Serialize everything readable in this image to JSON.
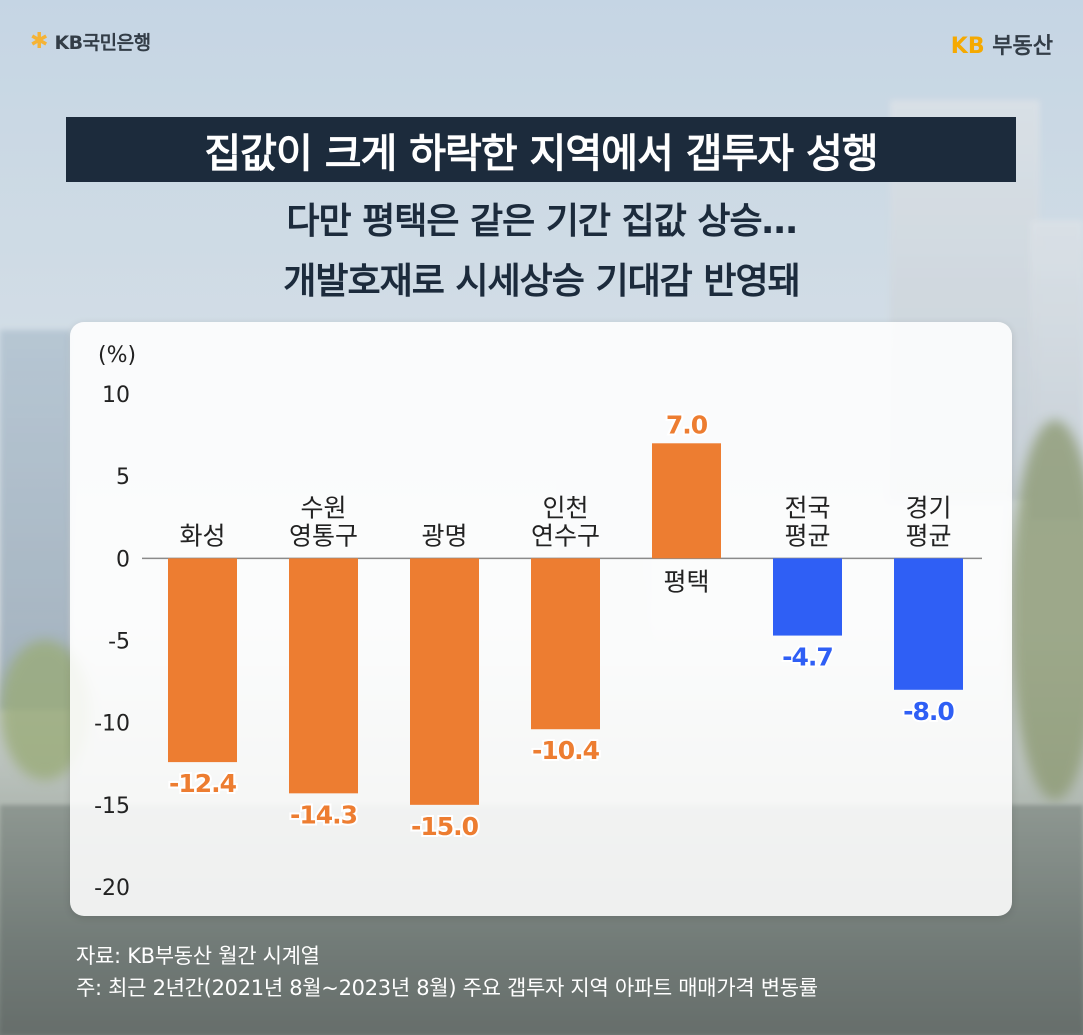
{
  "header": {
    "logo_left": "KB국민은행",
    "logo_right_kb": "KB",
    "logo_right_name": "부동산"
  },
  "title": "집값이 크게 하락한 지역에서 갭투자 성행",
  "subtitle_lines": [
    "다만 평택은 같은 기간 집값 상승…",
    "개발호재로 시세상승 기대감 반영돼"
  ],
  "colors": {
    "orange": "#ed7d31",
    "blue": "#2f5ff5",
    "title_bg": "#1c2b3c"
  },
  "chart_data": {
    "type": "bar",
    "ylabel": "(%)",
    "ylim": [
      -20,
      10
    ],
    "yticks": [
      "10",
      "5",
      "0",
      "-5",
      "-10",
      "-15",
      "-20"
    ],
    "grid": false,
    "categories": [
      [
        "화성"
      ],
      [
        "수원",
        "영통구"
      ],
      [
        "광명"
      ],
      [
        "인천",
        "연수구"
      ],
      [
        "평택"
      ],
      [
        "전국",
        "평균"
      ],
      [
        "경기",
        "평균"
      ]
    ],
    "values": [
      -12.4,
      -14.3,
      -15.0,
      -10.4,
      7.0,
      -4.7,
      -8.0
    ],
    "value_labels": [
      "-12.4",
      "-14.3",
      "-15.0",
      "-10.4",
      "7.0",
      "-4.7",
      "-8.0"
    ],
    "bar_colors": [
      "orange",
      "orange",
      "orange",
      "orange",
      "orange",
      "blue",
      "blue"
    ]
  },
  "source_lines": [
    "자료: KB부동산 월간 시계열",
    "주: 최근 2년간(2021년 8월~2023년 8월) 주요 갭투자 지역 아파트 매매가격 변동률"
  ]
}
